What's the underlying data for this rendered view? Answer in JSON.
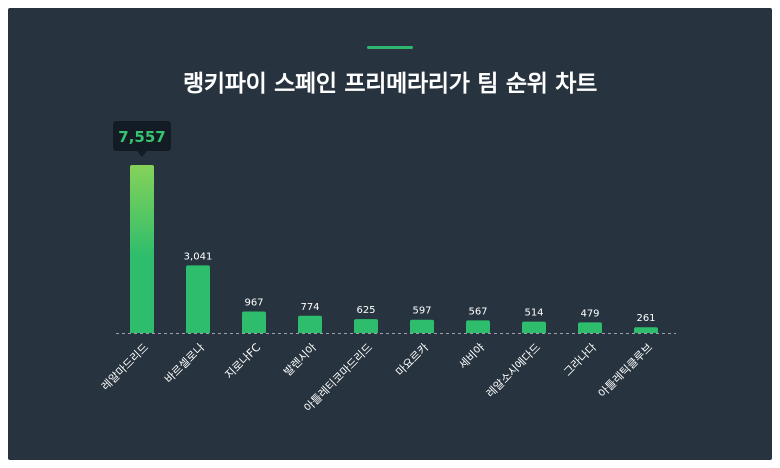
{
  "title": "랭키파이 스페인 프리메라리가 팀 순위 차트",
  "colors": {
    "background": "#27343f",
    "accent": "#2fb86d",
    "bar_top": "#7fd15a",
    "bar": "#2ebd6c",
    "tooltip_bg": "#131c24",
    "baseline": "#9aa3ab"
  },
  "chart_data": {
    "type": "bar",
    "title": "랭키파이 스페인 프리메라리가 팀 순위 차트",
    "categories": [
      "레알마드리드",
      "바르셀로나",
      "지로나FC",
      "발렌시아",
      "아틀레티코마드리드",
      "마요르카",
      "세비야",
      "레알소시에다드",
      "그라나다",
      "아틀레틱클루브"
    ],
    "values": [
      7557,
      3041,
      967,
      774,
      625,
      597,
      567,
      514,
      479,
      261
    ],
    "value_labels": [
      "7,557",
      "3,041",
      "967",
      "774",
      "625",
      "597",
      "567",
      "514",
      "479",
      "261"
    ],
    "highlight_index": 0,
    "grid": false,
    "legend": "none"
  }
}
